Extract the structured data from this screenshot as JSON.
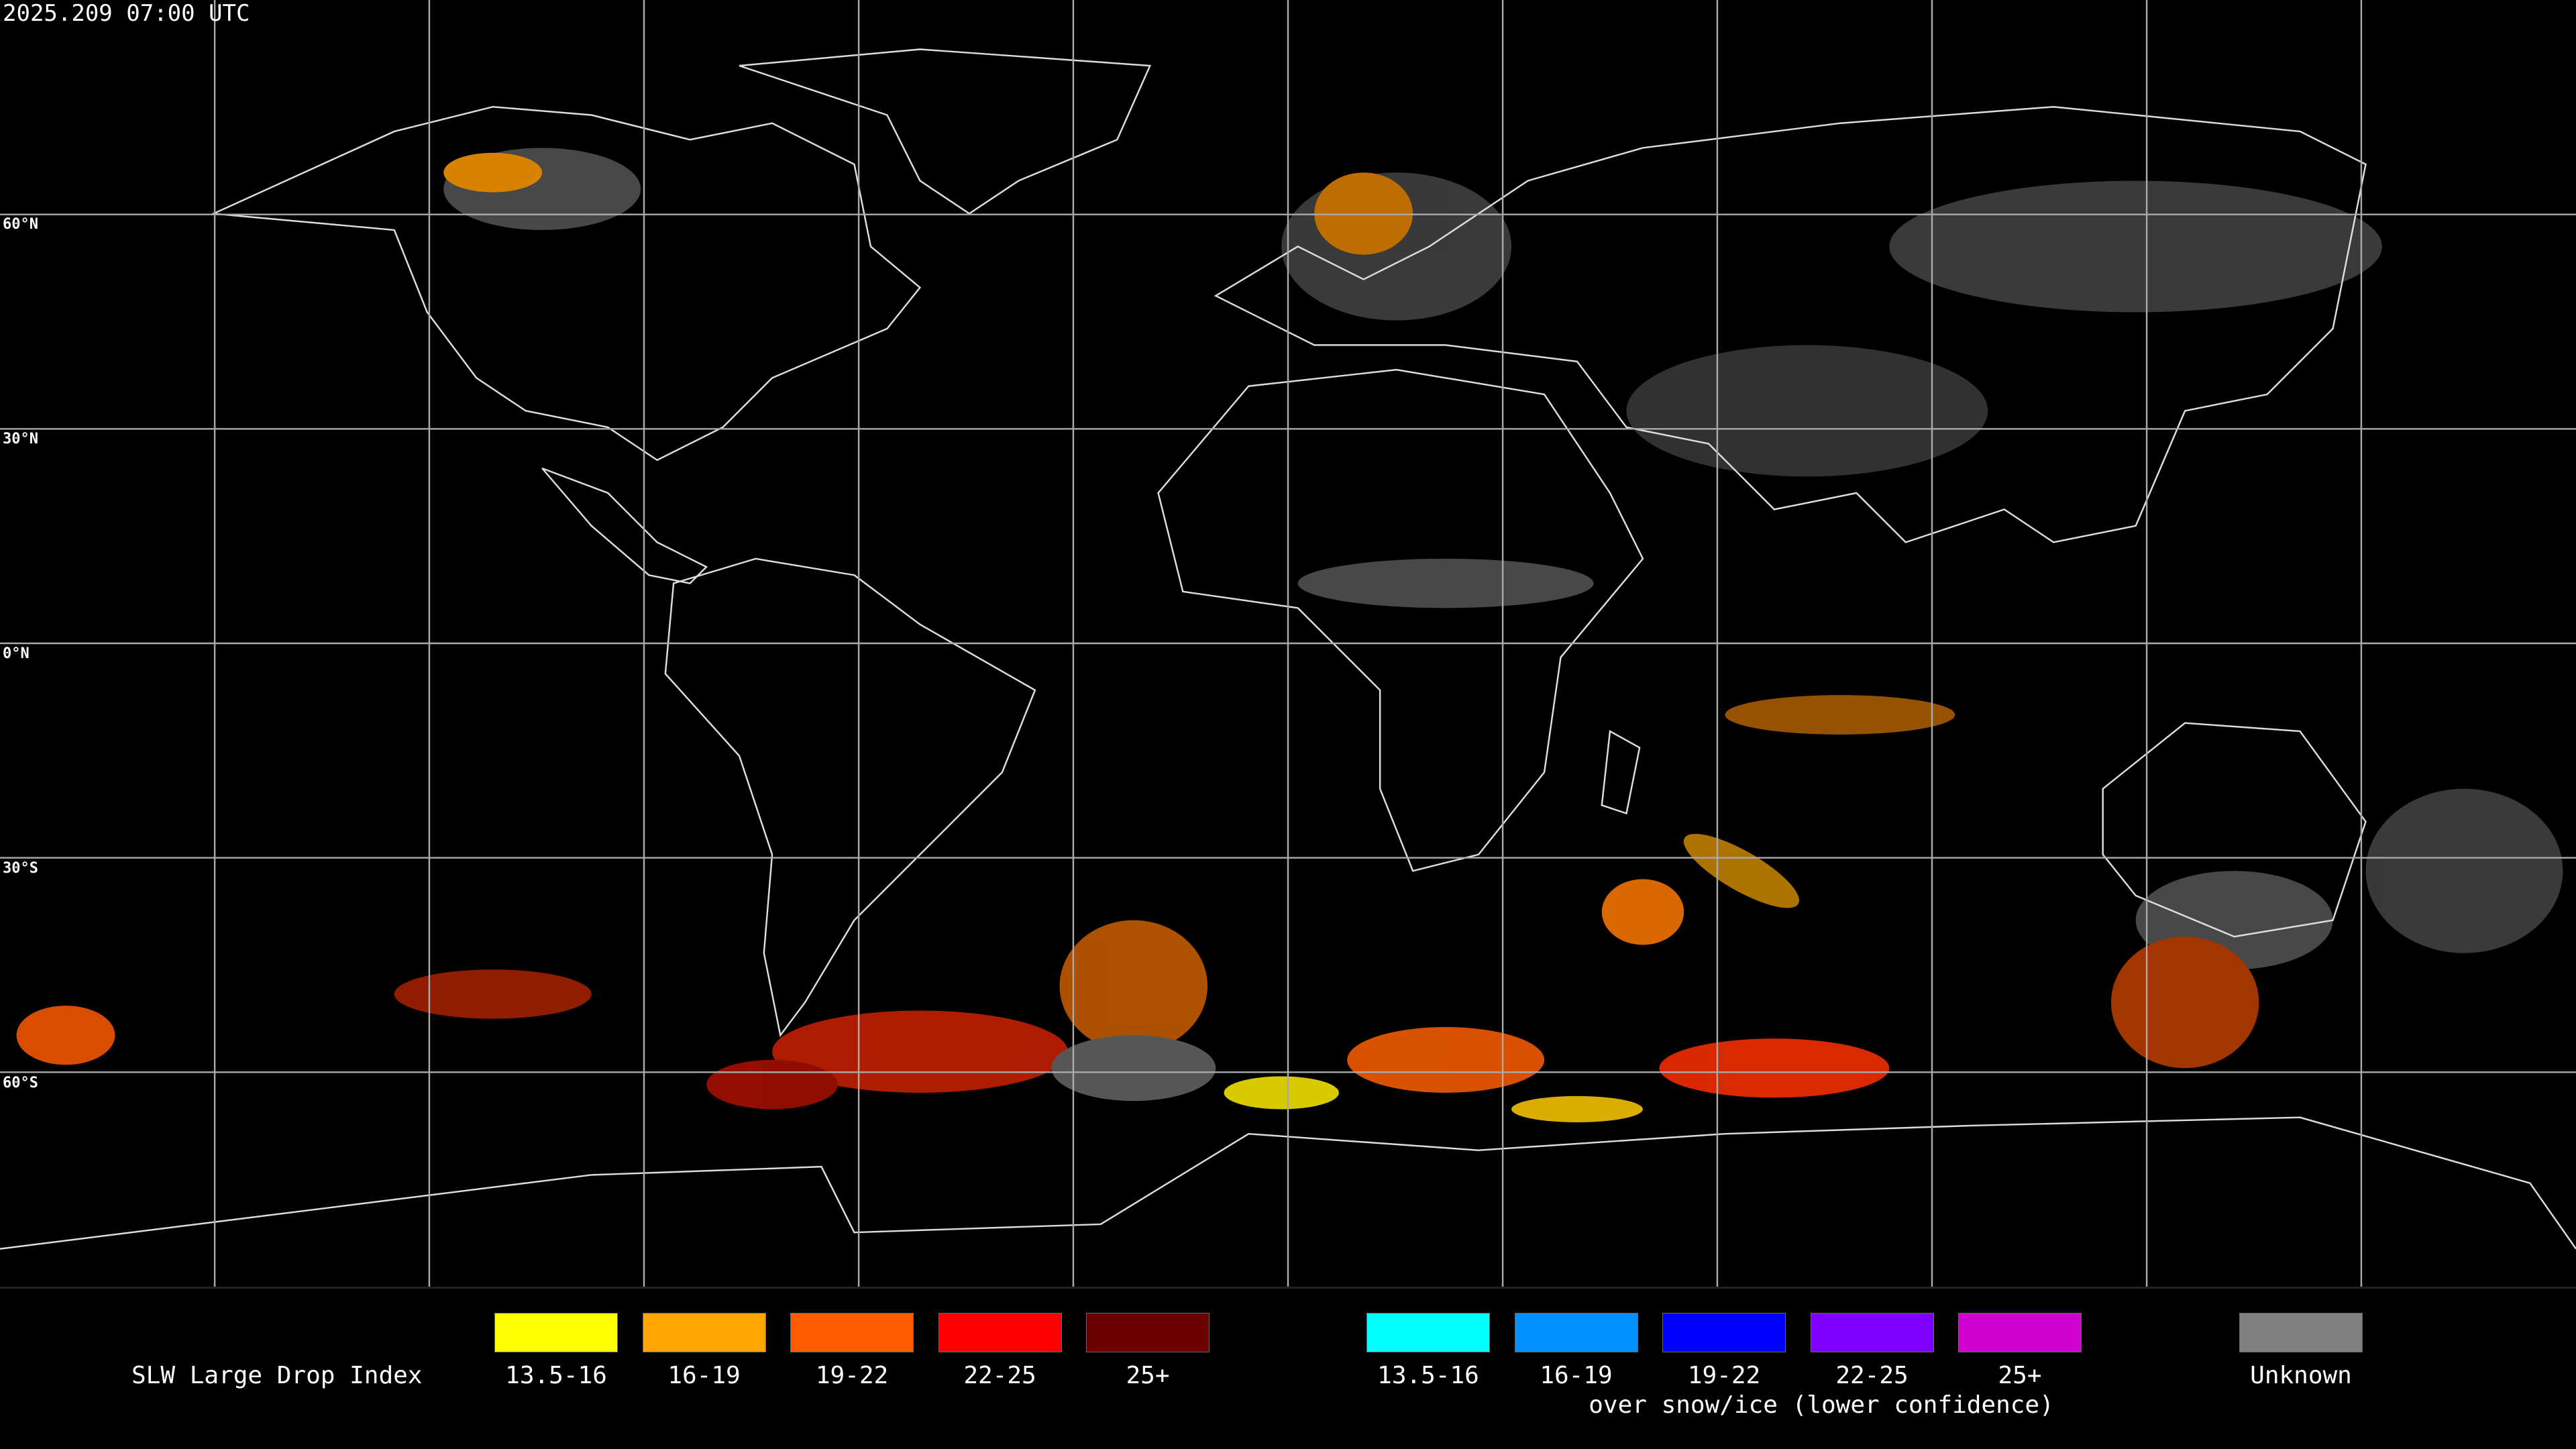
{
  "timestamp": "2025.209 07:00 UTC",
  "lat_labels": [
    "60°N",
    "30°N",
    "0°N",
    "30°S",
    "60°S"
  ],
  "legend": {
    "title": "SLW Large Drop Index",
    "items": [
      {
        "label": "13.5-16",
        "color": "#ffff00"
      },
      {
        "label": "16-19",
        "color": "#ffa500"
      },
      {
        "label": "19-22",
        "color": "#ff5a00"
      },
      {
        "label": "22-25",
        "color": "#ff0000"
      },
      {
        "label": "25+",
        "color": "#6b0000"
      }
    ],
    "snow_items": [
      {
        "label": "13.5-16",
        "color": "#00ffff"
      },
      {
        "label": "16-19",
        "color": "#0090ff"
      },
      {
        "label": "19-22",
        "color": "#0000ff"
      },
      {
        "label": "22-25",
        "color": "#8000ff"
      },
      {
        "label": "25+",
        "color": "#d000d0"
      }
    ],
    "snow_caption": "over snow/ice (lower confidence)",
    "unknown": {
      "label": "Unknown",
      "color": "#808080"
    }
  }
}
